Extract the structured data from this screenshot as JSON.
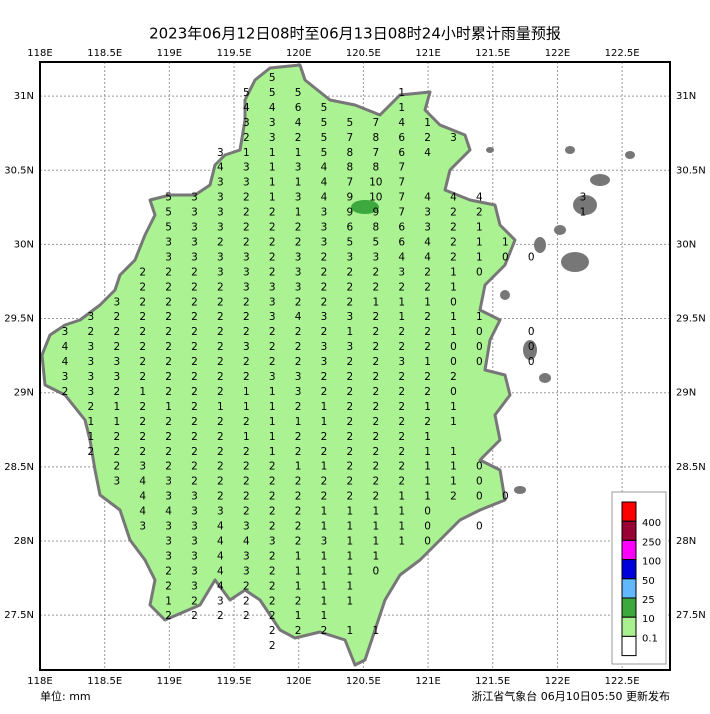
{
  "title": "2023年06月12日08时至06月13日08时24小时累计雨量预报",
  "xlim": [
    118,
    122.87
  ],
  "ylim": [
    27.13,
    31.23
  ],
  "xticks": [
    {
      "value": 118,
      "label": "118E"
    },
    {
      "value": 118.5,
      "label": "118.5E"
    },
    {
      "value": 119,
      "label": "119E"
    },
    {
      "value": 119.5,
      "label": "119.5E"
    },
    {
      "value": 120,
      "label": "120E"
    },
    {
      "value": 120.5,
      "label": "120.5E"
    },
    {
      "value": 121,
      "label": "121E"
    },
    {
      "value": 121.5,
      "label": "121.5E"
    },
    {
      "value": 122,
      "label": "122E"
    },
    {
      "value": 122.5,
      "label": "122.5E"
    }
  ],
  "yticks": [
    {
      "value": 31,
      "label": "31N"
    },
    {
      "value": 30.5,
      "label": "30.5N"
    },
    {
      "value": 30,
      "label": "30N"
    },
    {
      "value": 29.5,
      "label": "29.5N"
    },
    {
      "value": 29,
      "label": "29N"
    },
    {
      "value": 28.5,
      "label": "28.5N"
    },
    {
      "value": 28,
      "label": "28N"
    },
    {
      "value": 27.5,
      "label": "27.5N"
    }
  ],
  "grid": true,
  "legend": {
    "levels": [
      400,
      250,
      100,
      50,
      25,
      10,
      0.1
    ],
    "colors": [
      "#ff0000",
      "#990033",
      "#ff00ff",
      "#0000dd",
      "#61b8ff",
      "#3da83d",
      "#a9f090",
      "#ffffff"
    ]
  },
  "stations": {
    "rows": [
      [
        null,
        null,
        null,
        null,
        null,
        null,
        null,
        null,
        5
      ],
      [
        null,
        null,
        null,
        null,
        null,
        null,
        null,
        5,
        5,
        5,
        null,
        null,
        null,
        1
      ],
      [
        null,
        null,
        null,
        null,
        null,
        null,
        null,
        4,
        4,
        6,
        5,
        null,
        null,
        1
      ],
      [
        null,
        null,
        null,
        null,
        null,
        null,
        null,
        3,
        3,
        4,
        5,
        5,
        7,
        4,
        1
      ],
      [
        null,
        null,
        null,
        null,
        null,
        null,
        null,
        2,
        3,
        2,
        5,
        7,
        8,
        6,
        2,
        3
      ],
      [
        null,
        null,
        null,
        null,
        null,
        null,
        3,
        1,
        1,
        1,
        5,
        8,
        7,
        6,
        4
      ],
      [
        null,
        null,
        null,
        null,
        null,
        null,
        4,
        3,
        1,
        3,
        4,
        8,
        8,
        7
      ],
      [
        null,
        null,
        null,
        null,
        null,
        null,
        3,
        3,
        1,
        1,
        4,
        7,
        10,
        7
      ],
      [
        null,
        null,
        null,
        null,
        5,
        3,
        3,
        2,
        1,
        3,
        4,
        9,
        10,
        7,
        4,
        4,
        4,
        null,
        null,
        null,
        3
      ],
      [
        null,
        null,
        null,
        null,
        5,
        3,
        3,
        2,
        2,
        1,
        3,
        9,
        9,
        7,
        3,
        2,
        2,
        null,
        null,
        null,
        1
      ],
      [
        null,
        null,
        null,
        null,
        5,
        3,
        3,
        2,
        2,
        2,
        3,
        6,
        8,
        6,
        3,
        2,
        1
      ],
      [
        null,
        null,
        null,
        null,
        3,
        3,
        2,
        2,
        2,
        2,
        3,
        5,
        5,
        6,
        4,
        2,
        1,
        1
      ],
      [
        null,
        null,
        null,
        null,
        3,
        3,
        3,
        3,
        2,
        3,
        2,
        3,
        3,
        4,
        4,
        2,
        1,
        0,
        0
      ],
      [
        null,
        null,
        null,
        2,
        2,
        2,
        3,
        3,
        2,
        3,
        2,
        2,
        2,
        3,
        2,
        1,
        0
      ],
      [
        null,
        null,
        null,
        2,
        2,
        2,
        2,
        3,
        3,
        3,
        2,
        2,
        2,
        2,
        2,
        1
      ],
      [
        null,
        null,
        3,
        2,
        2,
        2,
        2,
        2,
        3,
        2,
        2,
        2,
        1,
        1,
        1,
        0
      ],
      [
        null,
        3,
        2,
        2,
        2,
        2,
        2,
        2,
        3,
        4,
        3,
        3,
        2,
        1,
        2,
        1,
        1
      ],
      [
        3,
        2,
        2,
        2,
        2,
        2,
        2,
        2,
        2,
        2,
        2,
        1,
        2,
        2,
        2,
        1,
        0,
        null,
        0
      ],
      [
        4,
        3,
        2,
        2,
        2,
        2,
        2,
        3,
        2,
        2,
        3,
        3,
        2,
        2,
        2,
        0,
        0,
        null,
        0
      ],
      [
        4,
        3,
        3,
        2,
        2,
        2,
        2,
        2,
        2,
        2,
        3,
        2,
        2,
        3,
        1,
        0,
        0,
        null,
        0
      ],
      [
        3,
        3,
        3,
        2,
        2,
        2,
        2,
        2,
        3,
        3,
        2,
        2,
        2,
        2,
        2,
        2
      ],
      [
        2,
        3,
        2,
        1,
        2,
        2,
        2,
        1,
        1,
        3,
        2,
        2,
        2,
        2,
        2,
        0
      ],
      [
        null,
        2,
        1,
        2,
        1,
        2,
        1,
        1,
        1,
        2,
        1,
        2,
        2,
        2,
        1,
        1
      ],
      [
        null,
        1,
        1,
        2,
        2,
        2,
        2,
        2,
        1,
        1,
        1,
        2,
        2,
        2,
        2,
        1
      ],
      [
        null,
        1,
        2,
        2,
        2,
        2,
        2,
        1,
        1,
        2,
        2,
        2,
        2,
        2,
        1
      ],
      [
        null,
        2,
        2,
        2,
        2,
        2,
        2,
        2,
        1,
        2,
        2,
        2,
        2,
        2,
        1,
        1
      ],
      [
        null,
        null,
        2,
        3,
        2,
        2,
        2,
        2,
        2,
        1,
        1,
        2,
        2,
        2,
        1,
        1,
        0
      ],
      [
        null,
        null,
        3,
        4,
        3,
        2,
        2,
        2,
        2,
        2,
        2,
        2,
        2,
        2,
        1,
        1,
        0
      ],
      [
        null,
        null,
        null,
        4,
        3,
        3,
        2,
        2,
        2,
        2,
        2,
        2,
        2,
        1,
        1,
        2,
        0,
        0
      ],
      [
        null,
        null,
        null,
        4,
        4,
        3,
        3,
        2,
        2,
        2,
        1,
        1,
        1,
        1,
        0
      ],
      [
        null,
        null,
        null,
        3,
        3,
        3,
        4,
        3,
        2,
        2,
        1,
        1,
        1,
        1,
        0,
        null,
        0
      ],
      [
        null,
        null,
        null,
        null,
        3,
        3,
        4,
        4,
        3,
        2,
        3,
        1,
        1,
        1,
        0
      ],
      [
        null,
        null,
        null,
        null,
        3,
        3,
        4,
        3,
        2,
        1,
        1,
        1,
        1
      ],
      [
        null,
        null,
        null,
        null,
        2,
        3,
        4,
        3,
        2,
        1,
        1,
        1,
        0
      ],
      [
        null,
        null,
        null,
        null,
        2,
        3,
        4,
        2,
        2,
        1,
        1,
        1
      ],
      [
        null,
        null,
        null,
        null,
        1,
        2,
        3,
        2,
        2,
        2,
        1,
        1
      ],
      [
        null,
        null,
        null,
        null,
        2,
        2,
        2,
        2,
        2,
        1,
        1
      ],
      [
        null,
        null,
        null,
        null,
        null,
        null,
        null,
        null,
        2,
        2,
        2,
        1,
        1
      ],
      [
        null,
        null,
        null,
        null,
        null,
        null,
        null,
        null,
        2
      ]
    ]
  },
  "footer": {
    "unit": "单位: mm",
    "source": "浙江省气象台 06月10日05:50 更新发布"
  }
}
